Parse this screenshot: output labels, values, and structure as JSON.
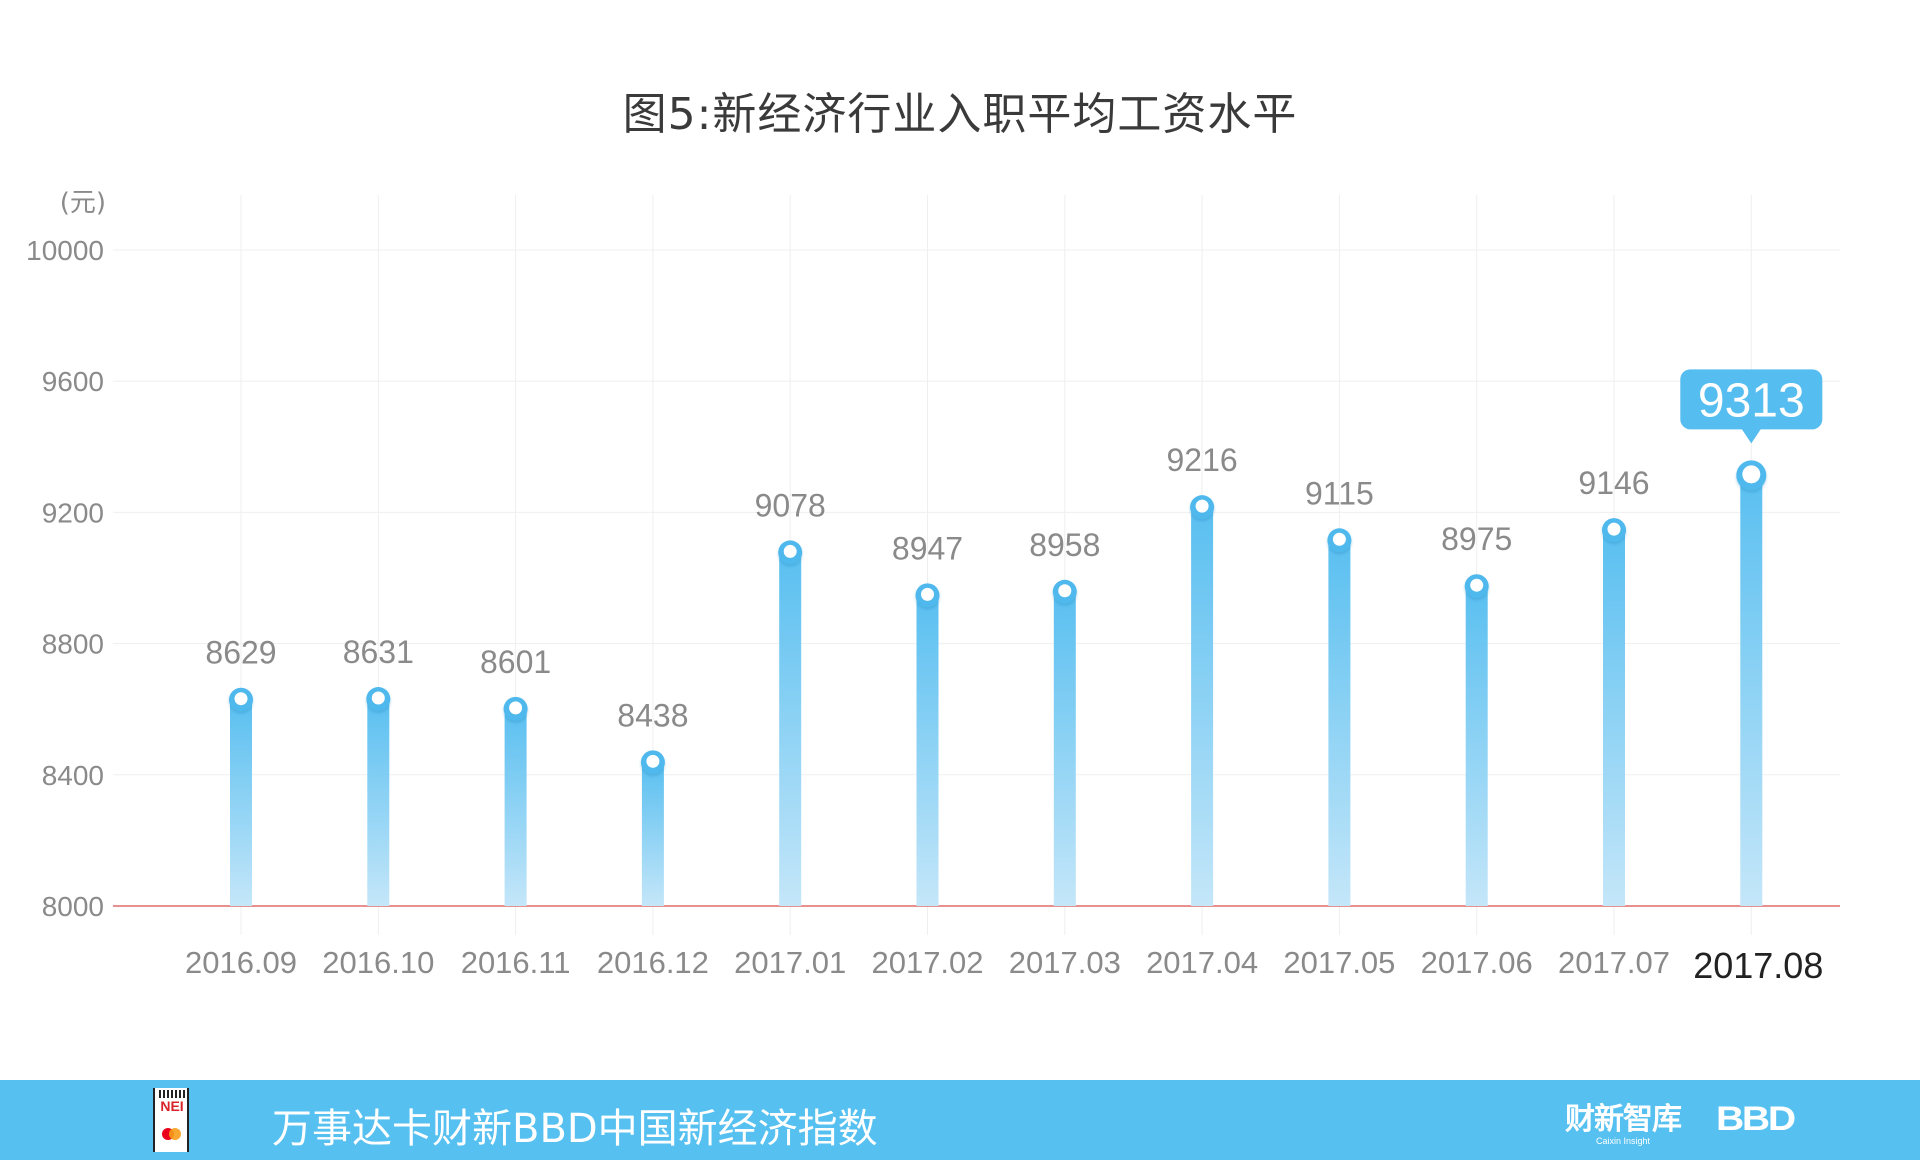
{
  "title": "图5:新经济行业入职平均工资水平",
  "footer": {
    "text": "万事达卡财新BBD中国新经济指数",
    "logo_left": "NEI",
    "logo_caixin_cn": "财新智库",
    "logo_caixin_en": "Caixin Insight",
    "logo_bbd": "BBD"
  },
  "colors": {
    "bar_top": "#59bff0",
    "bar_bottom": "#c4e6f9",
    "marker": "#4fb8ec",
    "baseline": "#e06a6a",
    "grid": "#efefef",
    "label": "#8a8a8a",
    "highlight_label": "#222222",
    "tooltip": "#56bdf0",
    "footer": "#56c0f0"
  },
  "chart_data": {
    "type": "bar",
    "title": "图5:新经济行业入职平均工资水平",
    "ylabel": "(元)",
    "xlabel": "",
    "categories": [
      "2016.09",
      "2016.10",
      "2016.11",
      "2016.12",
      "2017.01",
      "2017.02",
      "2017.03",
      "2017.04",
      "2017.05",
      "2017.06",
      "2017.07",
      "2017.08"
    ],
    "values": [
      8629,
      8631,
      8601,
      8438,
      9078,
      8947,
      8958,
      9216,
      9115,
      8975,
      9146,
      9313
    ],
    "ylim": [
      8000,
      10000
    ],
    "yticks": [
      8000,
      8400,
      8800,
      9200,
      9600,
      10000
    ],
    "grid": true,
    "highlight_index": 11,
    "highlight_tooltip": "9313",
    "legend": null
  }
}
